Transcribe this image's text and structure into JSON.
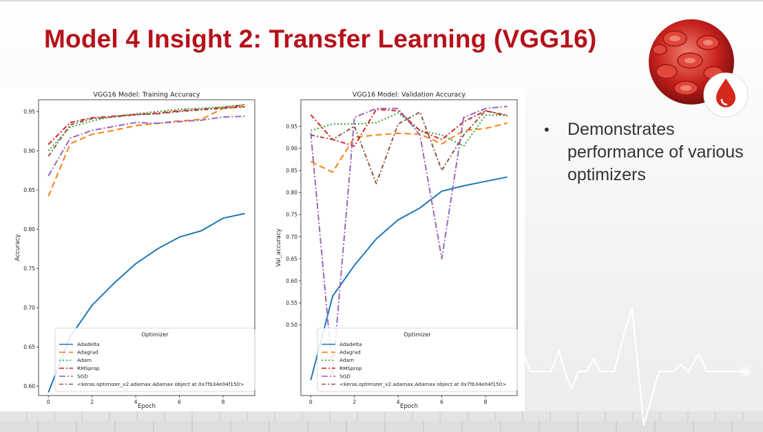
{
  "slide": {
    "title": "Model 4 Insight 2: Transfer Learning (VGG16)",
    "bullets": [
      "Demonstrates performance of various optimizers"
    ]
  },
  "icons": [
    "blood-cells-icon",
    "blood-drop-icon",
    "ecg-line-icon"
  ],
  "colors": {
    "title": "#b5121b",
    "logo": "#c8211e"
  },
  "chart_data": [
    {
      "type": "line",
      "title": "VGG16 Model: Training Accuracy",
      "xlabel": "Epoch",
      "ylabel": "Accuracy",
      "x": [
        0,
        1,
        2,
        3,
        4,
        5,
        6,
        7,
        8,
        9
      ],
      "xticks": [
        0,
        2,
        4,
        6,
        8
      ],
      "yticks": [
        0.6,
        0.65,
        0.7,
        0.75,
        0.8,
        0.85,
        0.9,
        0.95
      ],
      "xlim": [
        -0.45,
        9.45
      ],
      "ylim": [
        0.588,
        0.965
      ],
      "legend": {
        "title": "Optimizer",
        "placement": "lower-center"
      },
      "series": [
        {
          "name": "Adadelta",
          "color": "#1f77b4",
          "dash": "",
          "values": [
            0.592,
            0.663,
            0.703,
            0.731,
            0.756,
            0.775,
            0.79,
            0.798,
            0.814,
            0.82
          ]
        },
        {
          "name": "Adagrad",
          "color": "#ff7f0e",
          "dash": "9,5",
          "values": [
            0.842,
            0.909,
            0.921,
            0.926,
            0.932,
            0.935,
            0.938,
            0.94,
            0.954,
            0.956
          ]
        },
        {
          "name": "Adam",
          "color": "#2ca02c",
          "dash": "2,3",
          "values": [
            0.9,
            0.93,
            0.938,
            0.944,
            0.947,
            0.95,
            0.953,
            0.954,
            0.956,
            0.959
          ]
        },
        {
          "name": "RMSprop",
          "color": "#d62728",
          "dash": "7,3,2,3",
          "values": [
            0.908,
            0.936,
            0.942,
            0.944,
            0.946,
            0.948,
            0.951,
            0.953,
            0.955,
            0.958
          ]
        },
        {
          "name": "SGD",
          "color": "#9467bd",
          "dash": "9,3,2,3",
          "values": [
            0.868,
            0.916,
            0.926,
            0.931,
            0.936,
            0.935,
            0.937,
            0.939,
            0.943,
            0.944
          ]
        },
        {
          "name": "<keras.optimizer_v2.adamax.Adamax object at 0x7fb34e04f150>",
          "color": "#8c564b",
          "dash": "6,3,2,3",
          "values": [
            0.893,
            0.933,
            0.941,
            0.943,
            0.946,
            0.947,
            0.95,
            0.952,
            0.954,
            0.956
          ]
        }
      ]
    },
    {
      "type": "line",
      "title": "VGG16 Model: Validation Accuracy",
      "xlabel": "Epoch",
      "ylabel": "Val_accuracy",
      "x": [
        0,
        1,
        2,
        3,
        4,
        5,
        6,
        7,
        8,
        9
      ],
      "xticks": [
        0,
        2,
        4,
        6,
        8
      ],
      "yticks": [
        0.5,
        0.55,
        0.6,
        0.65,
        0.7,
        0.75,
        0.8,
        0.85,
        0.9,
        0.95
      ],
      "xlim": [
        -0.45,
        9.45
      ],
      "ylim": [
        0.34,
        1.01
      ],
      "legend": {
        "title": "Optimizer",
        "placement": "lower-center"
      },
      "series": [
        {
          "name": "Adadelta",
          "color": "#1f77b4",
          "dash": "",
          "values": [
            0.375,
            0.565,
            0.635,
            0.695,
            0.738,
            0.765,
            0.803,
            0.815,
            0.825,
            0.835
          ]
        },
        {
          "name": "Adagrad",
          "color": "#ff7f0e",
          "dash": "9,5",
          "values": [
            0.87,
            0.846,
            0.925,
            0.93,
            0.934,
            0.932,
            0.91,
            0.94,
            0.945,
            0.957
          ]
        },
        {
          "name": "Adam",
          "color": "#2ca02c",
          "dash": "2,3",
          "values": [
            0.94,
            0.955,
            0.955,
            0.958,
            0.98,
            0.94,
            0.93,
            0.905,
            0.975,
            0.975
          ]
        },
        {
          "name": "RMSprop",
          "color": "#d62728",
          "dash": "7,3,2,3",
          "values": [
            0.976,
            0.92,
            0.905,
            0.988,
            0.985,
            0.94,
            0.92,
            0.96,
            0.985,
            0.973
          ]
        },
        {
          "name": "SGD",
          "color": "#9467bd",
          "dash": "9,3,2,3",
          "values": [
            0.935,
            0.39,
            0.97,
            0.99,
            0.99,
            0.93,
            0.65,
            0.97,
            0.99,
            0.995
          ]
        },
        {
          "name": "<keras.optimizer_v2.adamax.Adamax object at 0x7fb34e04f150>",
          "color": "#8c564b",
          "dash": "6,3,2,3",
          "values": [
            0.93,
            0.92,
            0.95,
            0.82,
            0.955,
            0.982,
            0.85,
            0.93,
            0.985,
            0.975
          ]
        }
      ]
    }
  ]
}
